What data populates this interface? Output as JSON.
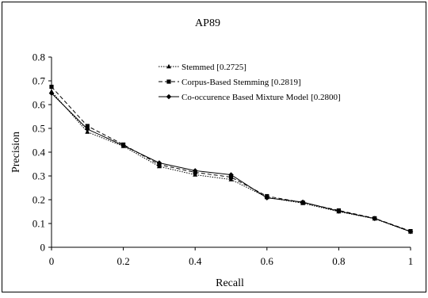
{
  "chart_data": {
    "type": "line",
    "title": "AP89",
    "xlabel": "Recall",
    "ylabel": "Precision",
    "xlim": [
      0,
      1
    ],
    "ylim": [
      0,
      0.8
    ],
    "x_ticks": [
      "0",
      "0.2",
      "0.4",
      "0.6",
      "0.8",
      "1"
    ],
    "y_ticks": [
      "0",
      "0.1",
      "0.2",
      "0.3",
      "0.4",
      "0.5",
      "0.6",
      "0.7",
      "0.8"
    ],
    "x": [
      0,
      0.1,
      0.2,
      0.3,
      0.4,
      0.5,
      0.6,
      0.7,
      0.8,
      0.9,
      1.0
    ],
    "grid": false,
    "legend_position": "top-center",
    "series": [
      {
        "name": "Stemmed [0.2725]",
        "style": "dotted",
        "marker": "triangle",
        "values": [
          0.655,
          0.485,
          0.425,
          0.34,
          0.305,
          0.285,
          0.21,
          0.185,
          0.15,
          0.12,
          0.065
        ]
      },
      {
        "name": "Corpus-Based Stemming [0.2819]",
        "style": "dashed",
        "marker": "square",
        "values": [
          0.675,
          0.51,
          0.432,
          0.348,
          0.315,
          0.295,
          0.215,
          0.188,
          0.155,
          0.122,
          0.068
        ]
      },
      {
        "name": "Co-occurence Based Mixture Model [0.2800]",
        "style": "solid",
        "marker": "diamond",
        "values": [
          0.648,
          0.497,
          0.428,
          0.355,
          0.322,
          0.305,
          0.208,
          0.19,
          0.152,
          0.121,
          0.066
        ]
      }
    ]
  }
}
